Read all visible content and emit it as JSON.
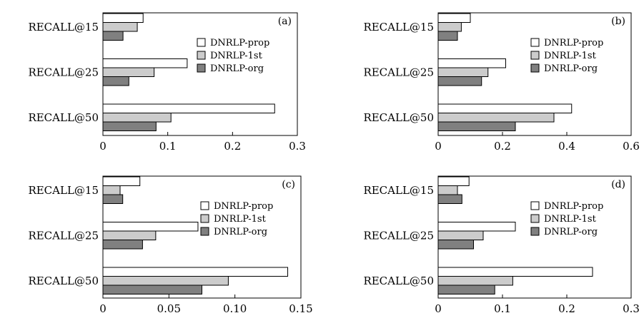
{
  "chart_data": [
    {
      "type": "bar",
      "orientation": "horizontal",
      "panel_label": "(a)",
      "categories": [
        "RECALL@15",
        "RECALL@25",
        "RECALL@50"
      ],
      "series": [
        {
          "name": "DNRLP-prop",
          "values": [
            0.062,
            0.13,
            0.265
          ],
          "color": "#ffffff"
        },
        {
          "name": "DNRLP-1st",
          "values": [
            0.053,
            0.079,
            0.105
          ],
          "color": "#cccccc"
        },
        {
          "name": "DNRLP-org",
          "values": [
            0.031,
            0.04,
            0.082
          ],
          "color": "#808080"
        }
      ],
      "xlim": [
        0,
        0.3
      ],
      "xticks": [
        "0",
        "0.1",
        "0.2",
        "0.3"
      ],
      "legend_position": "right",
      "grid": false
    },
    {
      "type": "bar",
      "orientation": "horizontal",
      "panel_label": "(b)",
      "categories": [
        "RECALL@15",
        "RECALL@25",
        "RECALL@50"
      ],
      "series": [
        {
          "name": "DNRLP-prop",
          "values": [
            0.1,
            0.21,
            0.415
          ],
          "color": "#ffffff"
        },
        {
          "name": "DNRLP-1st",
          "values": [
            0.072,
            0.155,
            0.36
          ],
          "color": "#cccccc"
        },
        {
          "name": "DNRLP-org",
          "values": [
            0.06,
            0.135,
            0.24
          ],
          "color": "#808080"
        }
      ],
      "xlim": [
        0,
        0.6
      ],
      "xticks": [
        "0",
        "0.2",
        "0.4",
        "0.6"
      ],
      "legend_position": "right",
      "grid": false
    },
    {
      "type": "bar",
      "orientation": "horizontal",
      "panel_label": "(c)",
      "categories": [
        "RECALL@15",
        "RECALL@25",
        "RECALL@50"
      ],
      "series": [
        {
          "name": "DNRLP-prop",
          "values": [
            0.028,
            0.072,
            0.14
          ],
          "color": "#ffffff"
        },
        {
          "name": "DNRLP-1st",
          "values": [
            0.013,
            0.04,
            0.095
          ],
          "color": "#cccccc"
        },
        {
          "name": "DNRLP-org",
          "values": [
            0.015,
            0.03,
            0.075
          ],
          "color": "#808080"
        }
      ],
      "xlim": [
        0,
        0.15
      ],
      "xticks": [
        "0",
        "0.05",
        "0.10",
        "0.15"
      ],
      "legend_position": "right",
      "grid": false
    },
    {
      "type": "bar",
      "orientation": "horizontal",
      "panel_label": "(d)",
      "categories": [
        "RECALL@15",
        "RECALL@25",
        "RECALL@50"
      ],
      "series": [
        {
          "name": "DNRLP-prop",
          "values": [
            0.048,
            0.12,
            0.24
          ],
          "color": "#ffffff"
        },
        {
          "name": "DNRLP-1st",
          "values": [
            0.03,
            0.07,
            0.116
          ],
          "color": "#cccccc"
        },
        {
          "name": "DNRLP-org",
          "values": [
            0.037,
            0.055,
            0.088
          ],
          "color": "#808080"
        }
      ],
      "xlim": [
        0,
        0.3
      ],
      "xticks": [
        "0",
        "0.1",
        "0.2",
        "0.3"
      ],
      "legend_position": "right",
      "grid": false
    }
  ]
}
